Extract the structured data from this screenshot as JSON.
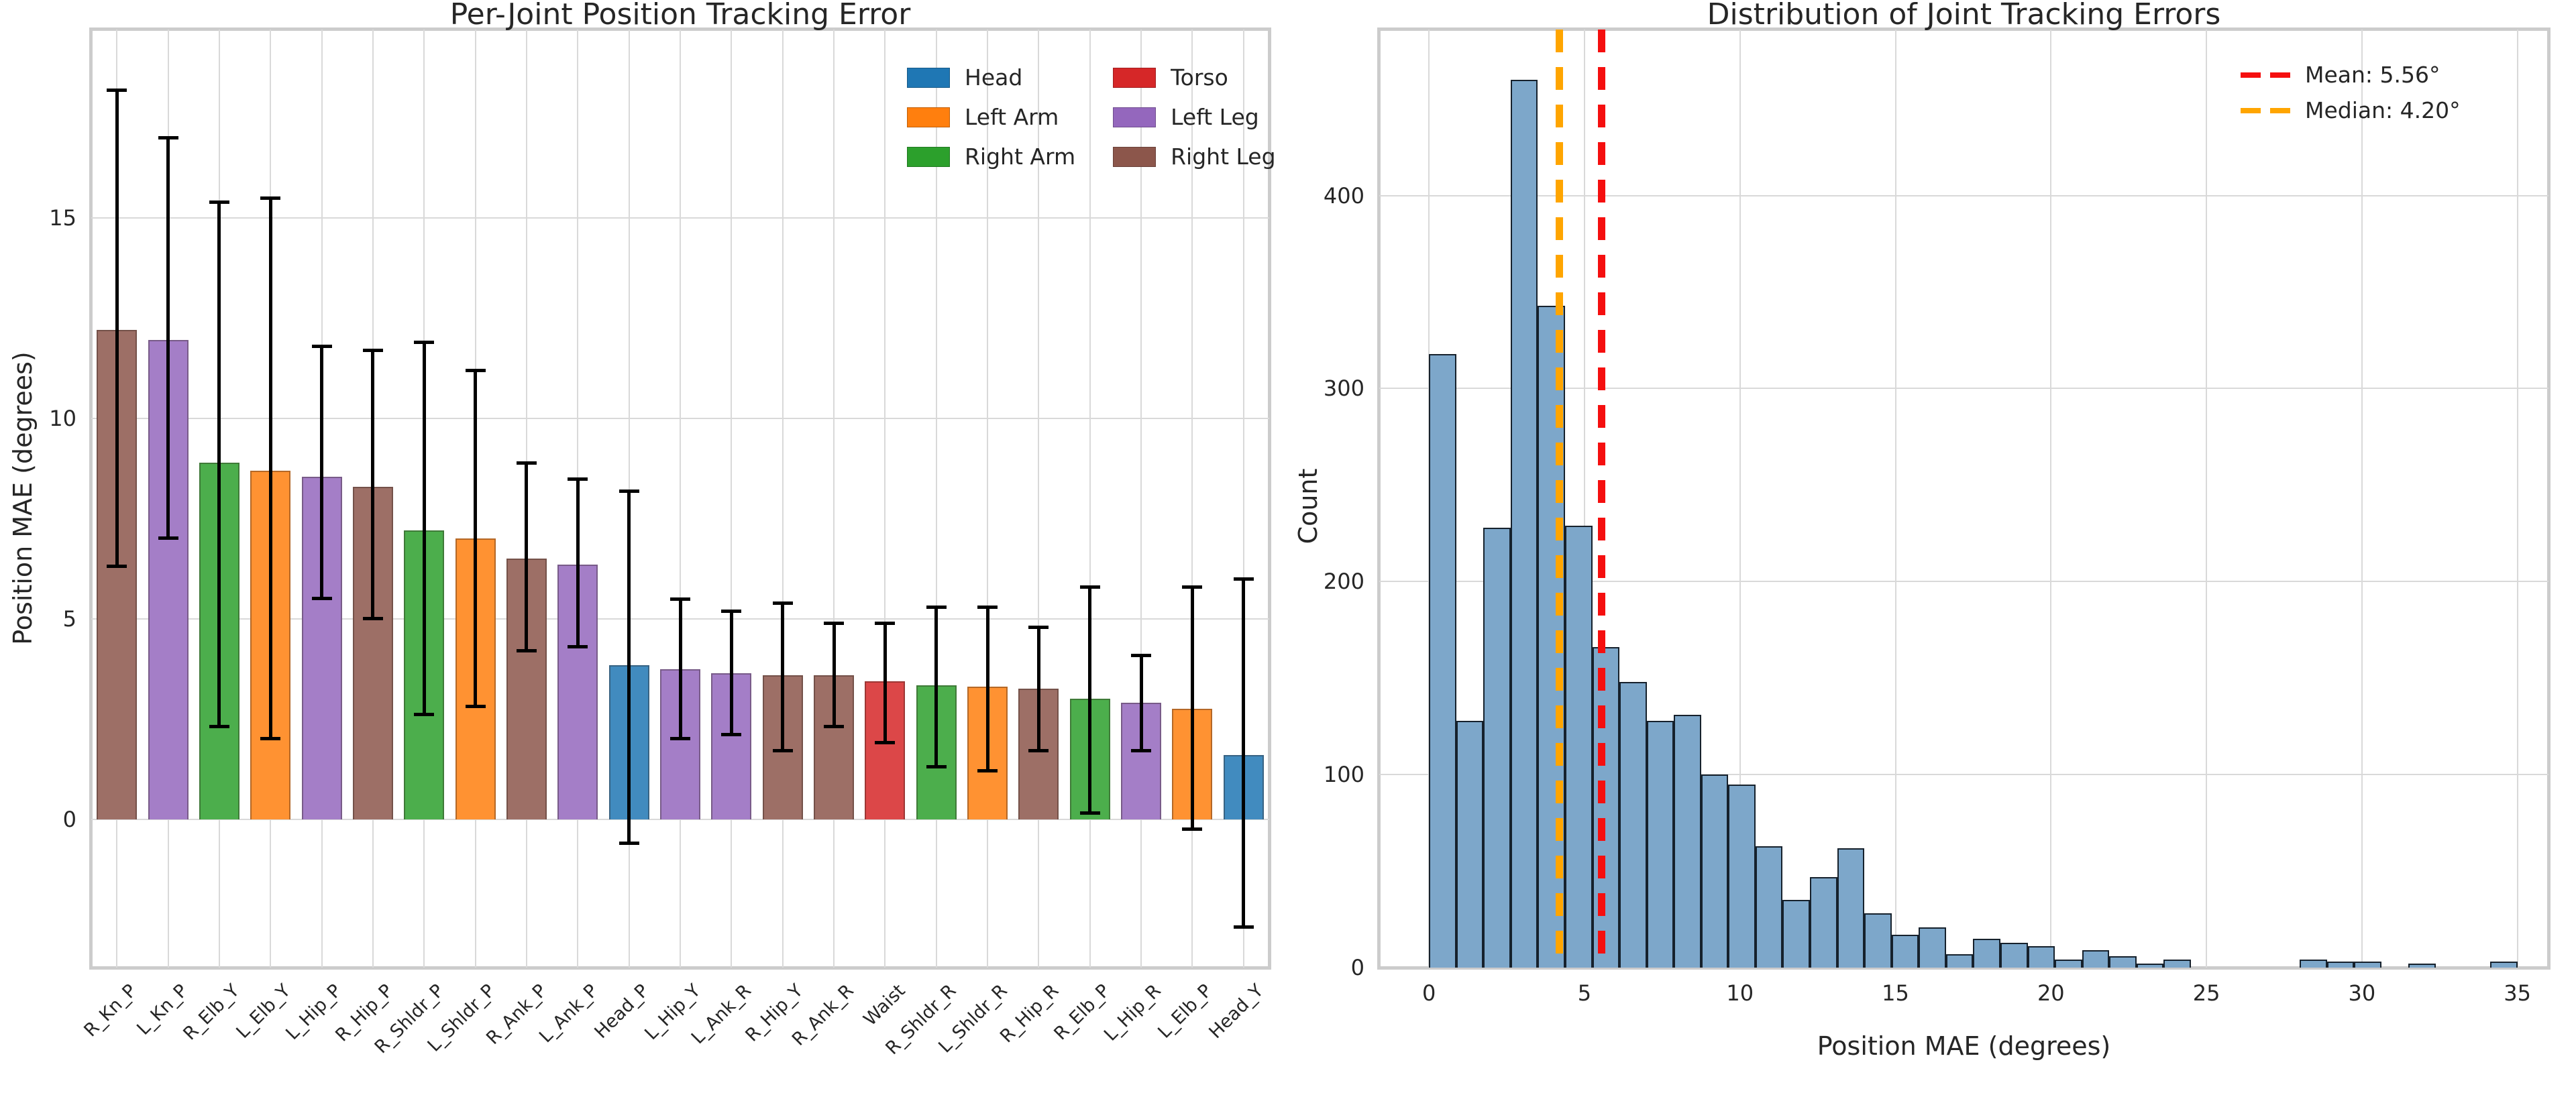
{
  "figure": {
    "background": "#ffffff",
    "grid_color": "#d9d9d9",
    "spine_color": "#cccccc",
    "text_color": "#262626"
  },
  "chart_data": [
    {
      "type": "bar",
      "title": "Per-Joint Position Tracking Error",
      "xlabel": "",
      "ylabel": "Position MAE (degrees)",
      "ylim": [
        -3.7,
        19.7
      ],
      "yticks": [
        0,
        5,
        10,
        15
      ],
      "grid": "both",
      "error_bar_color": "#000000",
      "bar_alpha": 0.85,
      "legend_position": "upper right",
      "groups": [
        {
          "name": "Head",
          "color": "#1f77b4"
        },
        {
          "name": "Left Arm",
          "color": "#ff7f0e"
        },
        {
          "name": "Right Arm",
          "color": "#2ca02c"
        },
        {
          "name": "Torso",
          "color": "#d62728"
        },
        {
          "name": "Left Leg",
          "color": "#9467bd"
        },
        {
          "name": "Right Leg",
          "color": "#8c564b"
        }
      ],
      "categories": [
        "R_Kn_P",
        "L_Kn_P",
        "R_Elb_Y",
        "L_Elb_Y",
        "L_Hip_P",
        "R_Hip_P",
        "R_Shldr_P",
        "L_Shldr_P",
        "R_Ank_P",
        "L_Ank_P",
        "Head_P",
        "L_Hip_Y",
        "L_Ank_R",
        "R_Hip_Y",
        "R_Ank_R",
        "Waist",
        "R_Shldr_R",
        "L_Shldr_R",
        "R_Hip_R",
        "R_Elb_P",
        "L_Hip_R",
        "L_Elb_P",
        "Head_Y"
      ],
      "bars": [
        {
          "joint": "R_Kn_P",
          "group": "Right Leg",
          "value": 12.2,
          "err_low": 6.3,
          "err_high": 18.2
        },
        {
          "joint": "L_Kn_P",
          "group": "Left Leg",
          "value": 11.95,
          "err_low": 7.0,
          "err_high": 17.0
        },
        {
          "joint": "R_Elb_Y",
          "group": "Right Arm",
          "value": 8.9,
          "err_low": 2.3,
          "err_high": 15.4
        },
        {
          "joint": "L_Elb_Y",
          "group": "Left Arm",
          "value": 8.7,
          "err_low": 2.0,
          "err_high": 15.5
        },
        {
          "joint": "L_Hip_P",
          "group": "Left Leg",
          "value": 8.55,
          "err_low": 5.5,
          "err_high": 11.8
        },
        {
          "joint": "R_Hip_P",
          "group": "Right Leg",
          "value": 8.3,
          "err_low": 5.0,
          "err_high": 11.7
        },
        {
          "joint": "R_Shldr_P",
          "group": "Right Arm",
          "value": 7.2,
          "err_low": 2.6,
          "err_high": 11.9
        },
        {
          "joint": "L_Shldr_P",
          "group": "Left Arm",
          "value": 7.0,
          "err_low": 2.8,
          "err_high": 11.2
        },
        {
          "joint": "R_Ank_P",
          "group": "Right Leg",
          "value": 6.5,
          "err_low": 4.2,
          "err_high": 8.9
        },
        {
          "joint": "L_Ank_P",
          "group": "Left Leg",
          "value": 6.35,
          "err_low": 4.3,
          "err_high": 8.5
        },
        {
          "joint": "Head_P",
          "group": "Head",
          "value": 3.85,
          "err_low": -0.6,
          "err_high": 8.2
        },
        {
          "joint": "L_Hip_Y",
          "group": "Left Leg",
          "value": 3.75,
          "err_low": 2.0,
          "err_high": 5.5
        },
        {
          "joint": "L_Ank_R",
          "group": "Left Leg",
          "value": 3.65,
          "err_low": 2.1,
          "err_high": 5.2
        },
        {
          "joint": "R_Hip_Y",
          "group": "Right Leg",
          "value": 3.6,
          "err_low": 1.7,
          "err_high": 5.4
        },
        {
          "joint": "R_Ank_R",
          "group": "Right Leg",
          "value": 3.6,
          "err_low": 2.3,
          "err_high": 4.9
        },
        {
          "joint": "Waist",
          "group": "Torso",
          "value": 3.45,
          "err_low": 1.9,
          "err_high": 4.9
        },
        {
          "joint": "R_Shldr_R",
          "group": "Right Arm",
          "value": 3.35,
          "err_low": 1.3,
          "err_high": 5.3
        },
        {
          "joint": "L_Shldr_R",
          "group": "Left Arm",
          "value": 3.3,
          "err_low": 1.2,
          "err_high": 5.3
        },
        {
          "joint": "R_Hip_R",
          "group": "Right Leg",
          "value": 3.25,
          "err_low": 1.7,
          "err_high": 4.8
        },
        {
          "joint": "R_Elb_P",
          "group": "Right Arm",
          "value": 3.0,
          "err_low": 0.15,
          "err_high": 5.8
        },
        {
          "joint": "L_Hip_R",
          "group": "Left Leg",
          "value": 2.9,
          "err_low": 1.7,
          "err_high": 4.1
        },
        {
          "joint": "L_Elb_P",
          "group": "Left Arm",
          "value": 2.75,
          "err_low": -0.25,
          "err_high": 5.8
        },
        {
          "joint": "Head_Y",
          "group": "Head",
          "value": 1.6,
          "err_low": -2.7,
          "err_high": 6.0
        }
      ]
    },
    {
      "type": "histogram",
      "title": "Distribution of Joint Tracking Errors",
      "xlabel": "Position MAE (degrees)",
      "ylabel": "Count",
      "xlim": [
        -1.6,
        36.0
      ],
      "ylim": [
        0,
        486
      ],
      "xticks": [
        0,
        5,
        10,
        15,
        20,
        25,
        30,
        35
      ],
      "yticks": [
        0,
        100,
        200,
        300,
        400
      ],
      "grid": "both",
      "bar_color": "#7da7ca",
      "bar_edge_color": "#16212c",
      "bin_start": 0,
      "bin_width": 0.875,
      "counts": [
        318,
        128,
        228,
        460,
        343,
        229,
        166,
        148,
        128,
        131,
        100,
        95,
        63,
        35,
        47,
        62,
        28,
        17,
        21,
        7,
        15,
        13,
        11,
        4,
        9,
        6,
        2,
        4,
        0,
        0,
        0,
        0,
        4,
        3,
        3,
        0,
        2,
        0,
        0,
        3
      ],
      "mean_line": {
        "label": "Mean: 5.56°",
        "value": 5.56,
        "color": "#f50f0f"
      },
      "median_line": {
        "label": "Median: 4.20°",
        "value": 4.2,
        "color": "#ffa500"
      }
    }
  ]
}
